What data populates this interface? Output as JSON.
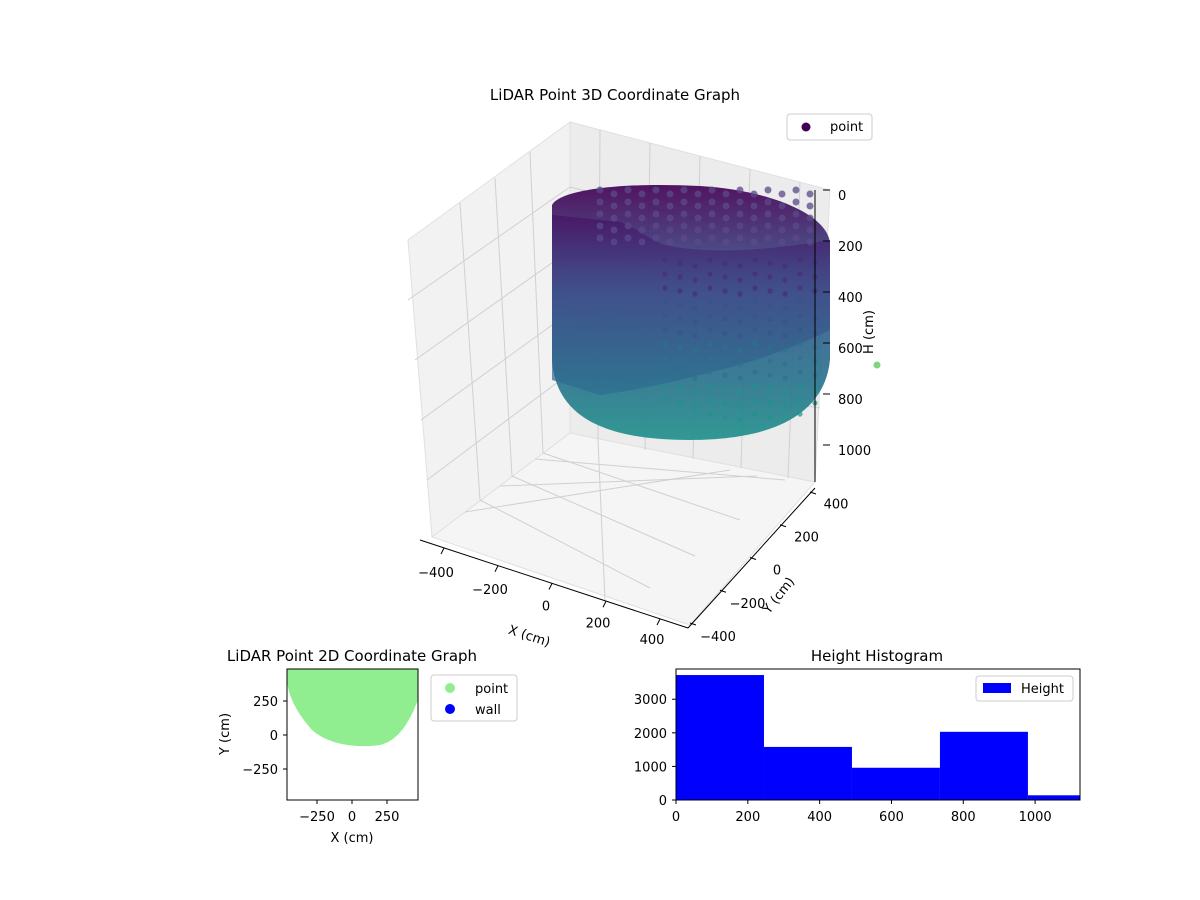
{
  "chart_data": [
    {
      "type": "scatter3d",
      "title": "LiDAR Point 3D Coordinate Graph",
      "xlabel": "X (cm)",
      "ylabel": "Y (cm)",
      "zlabel": "H (cm)",
      "x_ticks": [
        "−400",
        "−200",
        "0",
        "200",
        "400"
      ],
      "y_ticks": [
        "−400",
        "−200",
        "0",
        "200",
        "400"
      ],
      "z_ticks": [
        "0",
        "200",
        "400",
        "600",
        "800",
        "1000"
      ],
      "xlim": [
        -450,
        450
      ],
      "ylim": [
        -450,
        450
      ],
      "zlim": [
        0,
        1100
      ],
      "z_inverted": true,
      "legend": {
        "entries": [
          "point"
        ],
        "placement": "top-right"
      },
      "colormap": "viridis",
      "marker_color": "#440154"
    },
    {
      "type": "scatter",
      "title": "LiDAR Point 2D Coordinate Graph",
      "xlabel": "X (cm)",
      "ylabel": "Y (cm)",
      "x_ticks": [
        "−250",
        "0",
        "250"
      ],
      "y_ticks": [
        "250",
        "0",
        "−250"
      ],
      "xlim": [
        -480,
        480
      ],
      "ylim": [
        -480,
        480
      ],
      "legend": {
        "entries": [
          "point",
          "wall"
        ],
        "placement": "outside-right"
      },
      "series": [
        {
          "name": "point",
          "color": "#90ee90"
        },
        {
          "name": "wall",
          "color": "#0000ff"
        }
      ]
    },
    {
      "type": "bar",
      "title": "Height Histogram",
      "x_ticks": [
        "0",
        "200",
        "400",
        "600",
        "800",
        "1000"
      ],
      "y_ticks": [
        "0",
        "1000",
        "2000",
        "3000"
      ],
      "xlim": [
        0,
        1125
      ],
      "ylim": [
        0,
        3900
      ],
      "bins": [
        {
          "x0": 0,
          "x1": 245,
          "count": 3720
        },
        {
          "x0": 245,
          "x1": 490,
          "count": 1580
        },
        {
          "x0": 490,
          "x1": 735,
          "count": 960
        },
        {
          "x0": 735,
          "x1": 980,
          "count": 2030
        },
        {
          "x0": 980,
          "x1": 1125,
          "count": 140
        }
      ],
      "legend": {
        "entries": [
          "Height"
        ],
        "placement": "top-right"
      },
      "color": "#0000ff"
    }
  ]
}
